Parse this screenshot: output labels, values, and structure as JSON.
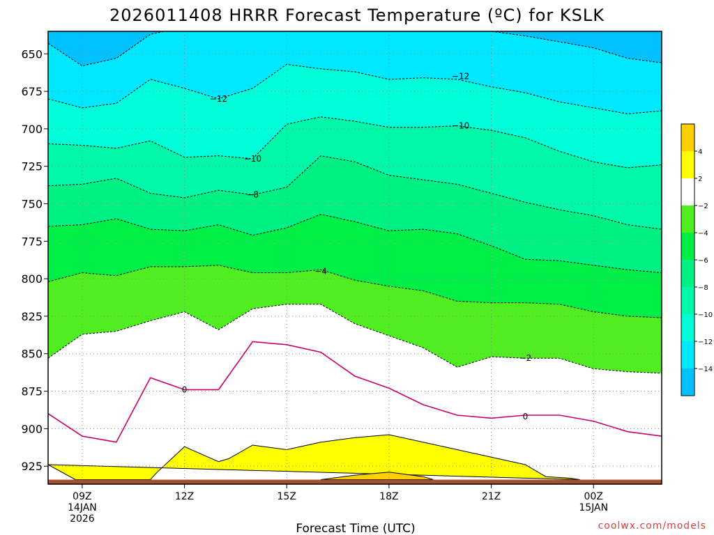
{
  "title": "2026011408 HRRR Forecast Temperature (ºC) for KSLK",
  "credit": "coolwx.com/models",
  "chart_data": {
    "type": "contour",
    "title": "2026011408 HRRR Forecast Temperature (ºC) for KSLK",
    "xlabel": "Forecast Time (UTC)",
    "ylabel": "",
    "x_hours": [
      8,
      9,
      10,
      11,
      12,
      13,
      14,
      15,
      16,
      17,
      18,
      19,
      20,
      21,
      22,
      23,
      24,
      25,
      26
    ],
    "xlim": [
      8,
      26
    ],
    "ylim": [
      937,
      635
    ],
    "y_reversed": true,
    "y_ticks": [
      650,
      675,
      700,
      725,
      750,
      775,
      800,
      825,
      850,
      875,
      900,
      925
    ],
    "x_ticks": [
      {
        "hour": 9,
        "lines": [
          "09Z",
          "14JAN",
          "2026"
        ]
      },
      {
        "hour": 12,
        "lines": [
          "12Z"
        ]
      },
      {
        "hour": 15,
        "lines": [
          "15Z"
        ]
      },
      {
        "hour": 18,
        "lines": [
          "18Z"
        ]
      },
      {
        "hour": 21,
        "lines": [
          "21Z"
        ]
      },
      {
        "hour": 24,
        "lines": [
          "00Z",
          "15JAN"
        ]
      }
    ],
    "ground_pressure": 934,
    "grid": true,
    "fill_levels": [
      {
        "from": -16,
        "to": -14,
        "color": "#00c0ff"
      },
      {
        "from": -14,
        "to": -12,
        "color": "#00e8ff"
      },
      {
        "from": -12,
        "to": -10,
        "color": "#00ffd8"
      },
      {
        "from": -10,
        "to": -8,
        "color": "#00f8a8"
      },
      {
        "from": -8,
        "to": -6,
        "color": "#00f084"
      },
      {
        "from": -6,
        "to": -4,
        "color": "#00ee48"
      },
      {
        "from": -4,
        "to": -2,
        "color": "#50ee20"
      },
      {
        "from": -2,
        "to": 2,
        "color": "#ffffff"
      },
      {
        "from": 2,
        "to": 4,
        "color": "#ffff00"
      },
      {
        "from": 4,
        "to": 6,
        "color": "#ffd000"
      }
    ],
    "ground_color": "#a0522d",
    "freezing_color": "#c8006e",
    "isotherms": [
      {
        "level": -14,
        "p": [
          643,
          658,
          653,
          637,
          632,
          631,
          631,
          630,
          629,
          629,
          630,
          631,
          632,
          635,
          638,
          642,
          646,
          653,
          656
        ]
      },
      {
        "level": -12,
        "p": [
          680,
          686,
          683,
          667,
          673,
          680,
          673,
          657,
          660,
          662,
          667,
          666,
          667,
          672,
          676,
          682,
          686,
          690,
          688
        ]
      },
      {
        "level": -10,
        "p": [
          710,
          711,
          713,
          708,
          719,
          718,
          720,
          697,
          692,
          695,
          699,
          699,
          698,
          701,
          706,
          715,
          722,
          726,
          724
        ]
      },
      {
        "level": -8,
        "p": [
          738,
          737,
          733,
          743,
          746,
          741,
          744,
          739,
          718,
          722,
          731,
          734,
          737,
          743,
          749,
          754,
          758,
          764,
          767
        ]
      },
      {
        "level": -6,
        "p": [
          765,
          764,
          760,
          767,
          768,
          764,
          771,
          766,
          757,
          762,
          768,
          767,
          770,
          778,
          787,
          788,
          791,
          794,
          796
        ]
      },
      {
        "level": -4,
        "p": [
          802,
          796,
          798,
          792,
          792,
          791,
          796,
          796,
          794,
          801,
          805,
          808,
          815,
          816,
          816,
          817,
          822,
          825,
          826
        ]
      },
      {
        "level": -2,
        "p": [
          853,
          837,
          835,
          828,
          822,
          834,
          820,
          817,
          817,
          830,
          838,
          846,
          859,
          852,
          853,
          853,
          860,
          862,
          863
        ]
      },
      {
        "level": 0,
        "p": [
          890,
          905,
          909,
          866,
          874,
          874,
          842,
          844,
          849,
          865,
          873,
          884,
          891,
          893,
          891,
          891,
          895,
          902,
          905
        ]
      }
    ],
    "warm_region_2": {
      "x": [
        8,
        8.8,
        11,
        11.2,
        12,
        13,
        13.3,
        14,
        15,
        16,
        17,
        18,
        19,
        20,
        21,
        22,
        22.6,
        23.3,
        23.6
      ],
      "p": [
        924,
        934,
        934,
        929,
        912,
        922,
        920,
        911,
        914,
        909,
        906,
        904,
        909,
        914,
        919,
        924,
        932,
        933,
        934
      ]
    },
    "warm_region_4": {
      "x": [
        16,
        17,
        18,
        19,
        19.3
      ],
      "p": [
        934,
        931,
        929,
        932,
        934
      ]
    },
    "contour_labels": [
      {
        "text": "−12",
        "hour": 13,
        "p": 680
      },
      {
        "text": "−12",
        "hour": 20.1,
        "p": 665
      },
      {
        "text": "−10",
        "hour": 14,
        "p": 720
      },
      {
        "text": "−10",
        "hour": 20.1,
        "p": 698
      },
      {
        "text": "−8",
        "hour": 14,
        "p": 744
      },
      {
        "text": "−4",
        "hour": 16,
        "p": 795
      },
      {
        "text": "−2",
        "hour": 22,
        "p": 853
      },
      {
        "text": "0",
        "hour": 12,
        "p": 874
      },
      {
        "text": "0",
        "hour": 22,
        "p": 892
      }
    ],
    "colorbar": {
      "ticks": [
        "4",
        "2",
        "−2",
        "−4",
        "−6",
        "−8",
        "−10",
        "−12",
        "−14"
      ],
      "colors": [
        "#ffd000",
        "#ffff00",
        "#ffffff",
        "#50ee20",
        "#00ee48",
        "#00f084",
        "#00f8a8",
        "#00ffd8",
        "#00e8ff",
        "#00c0ff"
      ]
    }
  }
}
